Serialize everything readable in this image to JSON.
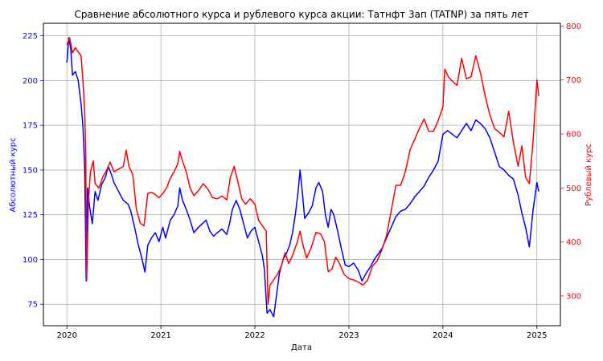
{
  "chart_data": {
    "type": "line",
    "title": "Сравнение абсолютного курса и рублевого курса акции: Татнфт 3ап (TATNP) за пять лет",
    "xlabel": "Дата",
    "ylabel_left": "Абсолютный курс",
    "ylabel_right": "Рублевый курс",
    "xlim": [
      2019.75,
      2025.25
    ],
    "ylim_left": [
      63,
      232
    ],
    "ylim_right": [
      245,
      805
    ],
    "x_ticks": [
      2020,
      2021,
      2022,
      2023,
      2024,
      2025
    ],
    "x_tick_labels": [
      "2020",
      "2021",
      "2022",
      "2023",
      "2024",
      "2025"
    ],
    "y_left_ticks": [
      75,
      100,
      125,
      150,
      175,
      200,
      225
    ],
    "y_left_tick_labels": [
      "75",
      "100",
      "125",
      "150",
      "175",
      "200",
      "225"
    ],
    "y_right_ticks": [
      300,
      400,
      500,
      600,
      700,
      800
    ],
    "y_right_tick_labels": [
      "300",
      "400",
      "500",
      "600",
      "700",
      "800"
    ],
    "grid": true,
    "colors": {
      "left": "#0000ff",
      "right": "#ff0000",
      "grid": "#b0b0b0"
    },
    "series": [
      {
        "axis": "left",
        "color": "#0000ff",
        "points": [
          [
            2020.0,
            210
          ],
          [
            2020.02,
            224
          ],
          [
            2020.04,
            218
          ],
          [
            2020.06,
            203
          ],
          [
            2020.09,
            205
          ],
          [
            2020.12,
            200
          ],
          [
            2020.15,
            187
          ],
          [
            2020.17,
            175
          ],
          [
            2020.19,
            150
          ],
          [
            2020.205,
            88
          ],
          [
            2020.22,
            140
          ],
          [
            2020.24,
            130
          ],
          [
            2020.27,
            120
          ],
          [
            2020.3,
            138
          ],
          [
            2020.33,
            133
          ],
          [
            2020.37,
            142
          ],
          [
            2020.41,
            146
          ],
          [
            2020.44,
            152
          ],
          [
            2020.47,
            148
          ],
          [
            2020.5,
            143
          ],
          [
            2020.55,
            138
          ],
          [
            2020.6,
            133
          ],
          [
            2020.65,
            131
          ],
          [
            2020.68,
            127
          ],
          [
            2020.72,
            118
          ],
          [
            2020.76,
            108
          ],
          [
            2020.8,
            100
          ],
          [
            2020.83,
            93
          ],
          [
            2020.86,
            108
          ],
          [
            2020.9,
            112
          ],
          [
            2020.94,
            115
          ],
          [
            2020.98,
            110
          ],
          [
            2021.02,
            118
          ],
          [
            2021.05,
            112
          ],
          [
            2021.1,
            122
          ],
          [
            2021.14,
            125
          ],
          [
            2021.18,
            130
          ],
          [
            2021.2,
            140
          ],
          [
            2021.23,
            133
          ],
          [
            2021.27,
            128
          ],
          [
            2021.31,
            122
          ],
          [
            2021.35,
            115
          ],
          [
            2021.4,
            118
          ],
          [
            2021.44,
            120
          ],
          [
            2021.48,
            122
          ],
          [
            2021.52,
            116
          ],
          [
            2021.56,
            113
          ],
          [
            2021.6,
            115
          ],
          [
            2021.65,
            117
          ],
          [
            2021.7,
            114
          ],
          [
            2021.73,
            120
          ],
          [
            2021.76,
            128
          ],
          [
            2021.8,
            133
          ],
          [
            2021.84,
            128
          ],
          [
            2021.88,
            120
          ],
          [
            2021.92,
            112
          ],
          [
            2021.96,
            116
          ],
          [
            2022.0,
            118
          ],
          [
            2022.04,
            110
          ],
          [
            2022.08,
            102
          ],
          [
            2022.1,
            95
          ],
          [
            2022.13,
            70
          ],
          [
            2022.16,
            72
          ],
          [
            2022.2,
            68
          ],
          [
            2022.23,
            80
          ],
          [
            2022.26,
            92
          ],
          [
            2022.3,
            100
          ],
          [
            2022.34,
            104
          ],
          [
            2022.37,
            108
          ],
          [
            2022.4,
            115
          ],
          [
            2022.43,
            125
          ],
          [
            2022.46,
            138
          ],
          [
            2022.48,
            150
          ],
          [
            2022.5,
            140
          ],
          [
            2022.53,
            123
          ],
          [
            2022.57,
            126
          ],
          [
            2022.61,
            130
          ],
          [
            2022.65,
            140
          ],
          [
            2022.68,
            143
          ],
          [
            2022.72,
            138
          ],
          [
            2022.75,
            125
          ],
          [
            2022.78,
            118
          ],
          [
            2022.81,
            128
          ],
          [
            2022.84,
            125
          ],
          [
            2022.88,
            116
          ],
          [
            2022.92,
            106
          ],
          [
            2022.96,
            97
          ],
          [
            2023.0,
            96
          ],
          [
            2023.05,
            98
          ],
          [
            2023.1,
            94
          ],
          [
            2023.14,
            88
          ],
          [
            2023.18,
            92
          ],
          [
            2023.23,
            96
          ],
          [
            2023.27,
            100
          ],
          [
            2023.31,
            103
          ],
          [
            2023.35,
            106
          ],
          [
            2023.4,
            112
          ],
          [
            2023.45,
            118
          ],
          [
            2023.5,
            124
          ],
          [
            2023.55,
            127
          ],
          [
            2023.6,
            128
          ],
          [
            2023.65,
            131
          ],
          [
            2023.7,
            135
          ],
          [
            2023.75,
            138
          ],
          [
            2023.8,
            141
          ],
          [
            2023.85,
            146
          ],
          [
            2023.9,
            150
          ],
          [
            2023.95,
            155
          ],
          [
            2024.0,
            170
          ],
          [
            2024.05,
            172
          ],
          [
            2024.1,
            170
          ],
          [
            2024.15,
            168
          ],
          [
            2024.2,
            172
          ],
          [
            2024.25,
            176
          ],
          [
            2024.3,
            172
          ],
          [
            2024.35,
            178
          ],
          [
            2024.4,
            176
          ],
          [
            2024.45,
            173
          ],
          [
            2024.5,
            168
          ],
          [
            2024.55,
            160
          ],
          [
            2024.6,
            152
          ],
          [
            2024.65,
            150
          ],
          [
            2024.7,
            147
          ],
          [
            2024.75,
            145
          ],
          [
            2024.8,
            136
          ],
          [
            2024.84,
            126
          ],
          [
            2024.88,
            118
          ],
          [
            2024.92,
            107
          ],
          [
            2024.96,
            128
          ],
          [
            2025.0,
            143
          ],
          [
            2025.02,
            138
          ]
        ]
      },
      {
        "axis": "right",
        "color": "#ff0000",
        "points": [
          [
            2020.0,
            765
          ],
          [
            2020.03,
            778
          ],
          [
            2020.06,
            750
          ],
          [
            2020.09,
            760
          ],
          [
            2020.12,
            752
          ],
          [
            2020.15,
            745
          ],
          [
            2020.17,
            700
          ],
          [
            2020.19,
            640
          ],
          [
            2020.2,
            560
          ],
          [
            2020.21,
            330
          ],
          [
            2020.23,
            480
          ],
          [
            2020.25,
            530
          ],
          [
            2020.28,
            550
          ],
          [
            2020.3,
            508
          ],
          [
            2020.34,
            500
          ],
          [
            2020.38,
            520
          ],
          [
            2020.42,
            532
          ],
          [
            2020.46,
            548
          ],
          [
            2020.5,
            530
          ],
          [
            2020.55,
            535
          ],
          [
            2020.6,
            540
          ],
          [
            2020.63,
            570
          ],
          [
            2020.66,
            540
          ],
          [
            2020.7,
            525
          ],
          [
            2020.74,
            460
          ],
          [
            2020.78,
            435
          ],
          [
            2020.82,
            430
          ],
          [
            2020.86,
            490
          ],
          [
            2020.9,
            492
          ],
          [
            2020.94,
            488
          ],
          [
            2020.98,
            482
          ],
          [
            2021.02,
            490
          ],
          [
            2021.06,
            500
          ],
          [
            2021.1,
            518
          ],
          [
            2021.14,
            530
          ],
          [
            2021.18,
            545
          ],
          [
            2021.2,
            568
          ],
          [
            2021.23,
            550
          ],
          [
            2021.27,
            530
          ],
          [
            2021.31,
            500
          ],
          [
            2021.35,
            486
          ],
          [
            2021.4,
            495
          ],
          [
            2021.45,
            508
          ],
          [
            2021.5,
            498
          ],
          [
            2021.55,
            482
          ],
          [
            2021.6,
            480
          ],
          [
            2021.65,
            485
          ],
          [
            2021.7,
            478
          ],
          [
            2021.74,
            520
          ],
          [
            2021.78,
            540
          ],
          [
            2021.82,
            510
          ],
          [
            2021.86,
            480
          ],
          [
            2021.9,
            470
          ],
          [
            2021.95,
            480
          ],
          [
            2022.0,
            470
          ],
          [
            2022.04,
            440
          ],
          [
            2022.08,
            430
          ],
          [
            2022.12,
            420
          ],
          [
            2022.14,
            285
          ],
          [
            2022.16,
            320
          ],
          [
            2022.2,
            330
          ],
          [
            2022.24,
            340
          ],
          [
            2022.28,
            355
          ],
          [
            2022.32,
            380
          ],
          [
            2022.36,
            360
          ],
          [
            2022.4,
            375
          ],
          [
            2022.45,
            400
          ],
          [
            2022.48,
            420
          ],
          [
            2022.51,
            395
          ],
          [
            2022.55,
            370
          ],
          [
            2022.6,
            390
          ],
          [
            2022.65,
            418
          ],
          [
            2022.7,
            415
          ],
          [
            2022.74,
            400
          ],
          [
            2022.78,
            345
          ],
          [
            2022.82,
            350
          ],
          [
            2022.86,
            372
          ],
          [
            2022.9,
            360
          ],
          [
            2022.95,
            340
          ],
          [
            2023.0,
            332
          ],
          [
            2023.05,
            330
          ],
          [
            2023.1,
            326
          ],
          [
            2023.15,
            320
          ],
          [
            2023.2,
            330
          ],
          [
            2023.25,
            355
          ],
          [
            2023.3,
            365
          ],
          [
            2023.35,
            385
          ],
          [
            2023.4,
            412
          ],
          [
            2023.45,
            458
          ],
          [
            2023.5,
            505
          ],
          [
            2023.55,
            505
          ],
          [
            2023.6,
            530
          ],
          [
            2023.65,
            570
          ],
          [
            2023.7,
            590
          ],
          [
            2023.75,
            610
          ],
          [
            2023.8,
            628
          ],
          [
            2023.85,
            605
          ],
          [
            2023.9,
            605
          ],
          [
            2023.95,
            625
          ],
          [
            2024.0,
            650
          ],
          [
            2024.02,
            720
          ],
          [
            2024.06,
            705
          ],
          [
            2024.1,
            698
          ],
          [
            2024.15,
            690
          ],
          [
            2024.2,
            740
          ],
          [
            2024.25,
            702
          ],
          [
            2024.3,
            706
          ],
          [
            2024.35,
            745
          ],
          [
            2024.4,
            713
          ],
          [
            2024.45,
            670
          ],
          [
            2024.5,
            635
          ],
          [
            2024.55,
            610
          ],
          [
            2024.6,
            603
          ],
          [
            2024.65,
            595
          ],
          [
            2024.7,
            642
          ],
          [
            2024.75,
            585
          ],
          [
            2024.8,
            540
          ],
          [
            2024.84,
            578
          ],
          [
            2024.88,
            520
          ],
          [
            2024.92,
            508
          ],
          [
            2024.96,
            588
          ],
          [
            2025.0,
            700
          ],
          [
            2025.02,
            670
          ]
        ]
      }
    ]
  }
}
